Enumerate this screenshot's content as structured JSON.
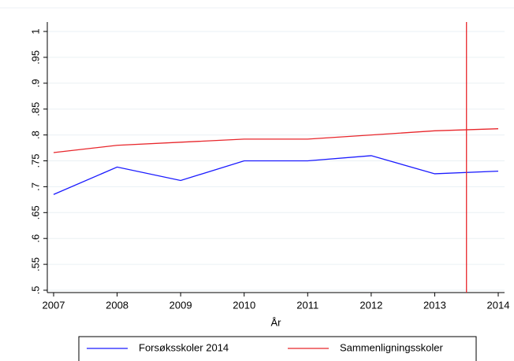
{
  "chart_data": {
    "type": "line",
    "x": [
      2007,
      2008,
      2009,
      2010,
      2011,
      2012,
      2013,
      2014
    ],
    "xlabel": "År",
    "series": [
      {
        "name": "Forsøksskoler 2014",
        "color": "#1a1aff",
        "values": [
          0.685,
          0.738,
          0.712,
          0.75,
          0.75,
          0.76,
          0.725,
          0.73
        ]
      },
      {
        "name": "Sammenligningsskoler",
        "color": "#e8262b",
        "values": [
          0.766,
          0.78,
          0.786,
          0.792,
          0.792,
          0.8,
          0.808,
          0.812
        ]
      }
    ],
    "xlim": [
      2007,
      2014
    ],
    "xticks": [
      2007,
      2008,
      2009,
      2010,
      2011,
      2012,
      2013,
      2014
    ],
    "ylim": [
      0.5,
      1
    ],
    "yticks": [
      {
        "value": 0.5,
        "label": ".5"
      },
      {
        "value": 0.55,
        "label": ".55"
      },
      {
        "value": 0.6,
        "label": ".6"
      },
      {
        "value": 0.65,
        "label": ".65"
      },
      {
        "value": 0.7,
        "label": ".7"
      },
      {
        "value": 0.75,
        "label": ".75"
      },
      {
        "value": 0.8,
        "label": ".8"
      },
      {
        "value": 0.85,
        "label": ".85"
      },
      {
        "value": 0.9,
        "label": ".9"
      },
      {
        "value": 0.95,
        "label": ".95"
      },
      {
        "value": 1,
        "label": "1"
      }
    ],
    "vline": {
      "value": 2013.5,
      "color": "#e8262b"
    },
    "grid": true,
    "legend": "bottom"
  }
}
